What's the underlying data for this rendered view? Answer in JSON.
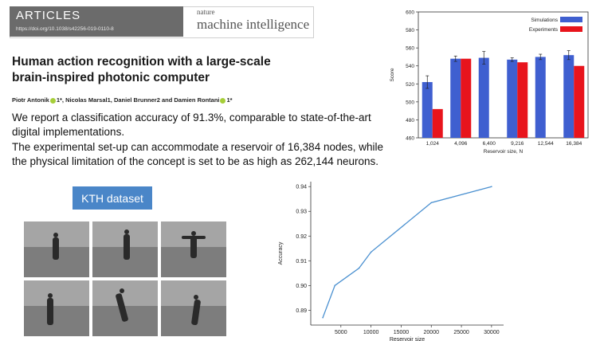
{
  "header": {
    "section": "ARTICLES",
    "doi": "https://doi.org/10.1038/s42256-019-0110-8",
    "journal_small": "nature",
    "journal_big": "machine intelligence"
  },
  "paper": {
    "title_line1": "Human action recognition with a large-scale",
    "title_line2": "brain-inspired photonic computer",
    "authors": "Piotr Antonik",
    "authors_2": "1*, Nicolas Marsal",
    "authors_3": "1, Daniel Brunner",
    "authors_4": "2 and Damien Rontani",
    "authors_5": "1*"
  },
  "summary": {
    "line1": "We report a classification accuracy of 91.3%, comparable to state-of-the-art",
    "line2": "digital implementations.",
    "line3": "The experimental set-up can accommodate a reservoir of 16,384 nodes, while",
    "line4": "the physical limitation of the concept is set to be as high as 262,144 neurons."
  },
  "dataset": {
    "label": "KTH dataset"
  },
  "colors": {
    "simulations": "#3f5fd0",
    "experiments": "#e8141c",
    "line": "#4a90d0",
    "kth_box": "#4a86c8"
  },
  "chart_data": [
    {
      "type": "bar",
      "categories": [
        "1,024",
        "4,096",
        "6,400",
        "9,216",
        "12,544",
        "16,384"
      ],
      "series": [
        {
          "name": "Simulations",
          "values": [
            522,
            548,
            549,
            547,
            550,
            552
          ],
          "errors": [
            7,
            3,
            7,
            2,
            3,
            5
          ]
        },
        {
          "name": "Experiments",
          "values": [
            492,
            548,
            null,
            544,
            null,
            540
          ]
        }
      ],
      "xlabel": "Reservoir size, N",
      "ylabel": "Score",
      "ylim": [
        460,
        600
      ],
      "yticks": [
        460,
        480,
        500,
        520,
        540,
        560,
        580,
        600
      ],
      "legend": "top-right"
    },
    {
      "type": "line",
      "x": [
        2000,
        4000,
        8000,
        10000,
        20000,
        30000
      ],
      "y": [
        0.887,
        0.9,
        0.907,
        0.9135,
        0.9335,
        0.94
      ],
      "xlabel": "Reservoir size",
      "ylabel": "Accuracy",
      "xlim": [
        0,
        32000
      ],
      "ylim": [
        0.884,
        0.942
      ],
      "xticks": [
        5000,
        10000,
        15000,
        20000,
        25000,
        30000
      ],
      "yticks": [
        0.89,
        0.9,
        0.91,
        0.92,
        0.93,
        0.94
      ]
    }
  ]
}
